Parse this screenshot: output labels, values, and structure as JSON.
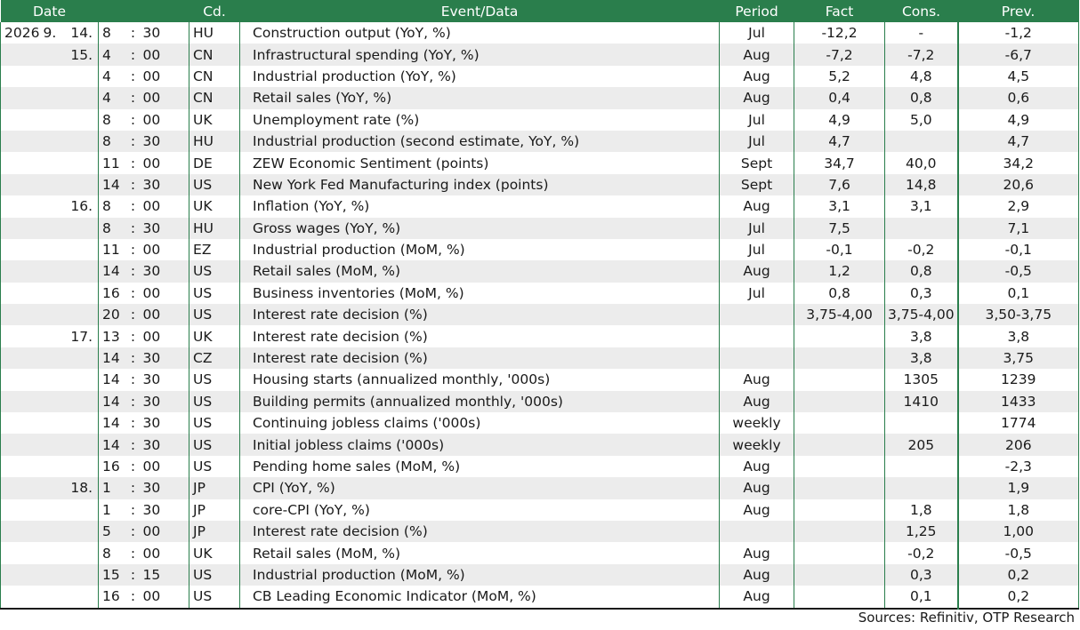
{
  "headers": {
    "date": "Date",
    "code": "Cd.",
    "event": "Event/Data",
    "period": "Period",
    "fact": "Fact",
    "cons": "Cons.",
    "prev": "Prev."
  },
  "rows": [
    {
      "year": "2026",
      "month": "9.",
      "day": "14.",
      "hour": "8",
      "min": "30",
      "code": "HU",
      "event": "Construction output (YoY, %)",
      "period": "Jul",
      "fact": "-12,2",
      "cons": "-",
      "prev": "-1,2"
    },
    {
      "year": "",
      "month": "",
      "day": "15.",
      "hour": "4",
      "min": "00",
      "code": "CN",
      "event": "Infrastructural spending (YoY, %)",
      "period": "Aug",
      "fact": "-7,2",
      "cons": "-7,2",
      "prev": "-6,7"
    },
    {
      "year": "",
      "month": "",
      "day": "",
      "hour": "4",
      "min": "00",
      "code": "CN",
      "event": "Industrial production (YoY, %)",
      "period": "Aug",
      "fact": "5,2",
      "cons": "4,8",
      "prev": "4,5"
    },
    {
      "year": "",
      "month": "",
      "day": "",
      "hour": "4",
      "min": "00",
      "code": "CN",
      "event": "Retail sales (YoY, %)",
      "period": "Aug",
      "fact": "0,4",
      "cons": "0,8",
      "prev": "0,6"
    },
    {
      "year": "",
      "month": "",
      "day": "",
      "hour": "8",
      "min": "00",
      "code": "UK",
      "event": "Unemployment rate (%)",
      "period": "Jul",
      "fact": "4,9",
      "cons": "5,0",
      "prev": "4,9"
    },
    {
      "year": "",
      "month": "",
      "day": "",
      "hour": "8",
      "min": "30",
      "code": "HU",
      "event": "Industrial production (second estimate, YoY, %)",
      "period": "Jul",
      "fact": "4,7",
      "cons": "",
      "prev": "4,7"
    },
    {
      "year": "",
      "month": "",
      "day": "",
      "hour": "11",
      "min": "00",
      "code": "DE",
      "event": "ZEW Economic Sentiment (points)",
      "period": "Sept",
      "fact": "34,7",
      "cons": "40,0",
      "prev": "34,2"
    },
    {
      "year": "",
      "month": "",
      "day": "",
      "hour": "14",
      "min": "30",
      "code": "US",
      "event": "New York Fed Manufacturing index (points)",
      "period": "Sept",
      "fact": "7,6",
      "cons": "14,8",
      "prev": "20,6"
    },
    {
      "year": "",
      "month": "",
      "day": "16.",
      "hour": "8",
      "min": "00",
      "code": "UK",
      "event": "Inflation (YoY, %)",
      "period": "Aug",
      "fact": "3,1",
      "cons": "3,1",
      "prev": "2,9"
    },
    {
      "year": "",
      "month": "",
      "day": "",
      "hour": "8",
      "min": "30",
      "code": "HU",
      "event": "Gross wages (YoY, %)",
      "period": "Jul",
      "fact": "7,5",
      "cons": "",
      "prev": "7,1"
    },
    {
      "year": "",
      "month": "",
      "day": "",
      "hour": "11",
      "min": "00",
      "code": "EZ",
      "event": "Industrial production (MoM, %)",
      "period": "Jul",
      "fact": "-0,1",
      "cons": "-0,2",
      "prev": "-0,1"
    },
    {
      "year": "",
      "month": "",
      "day": "",
      "hour": "14",
      "min": "30",
      "code": "US",
      "event": "Retail sales (MoM, %)",
      "period": "Aug",
      "fact": "1,2",
      "cons": "0,8",
      "prev": "-0,5"
    },
    {
      "year": "",
      "month": "",
      "day": "",
      "hour": "16",
      "min": "00",
      "code": "US",
      "event": "Business inventories (MoM, %)",
      "period": "Jul",
      "fact": "0,8",
      "cons": "0,3",
      "prev": "0,1"
    },
    {
      "year": "",
      "month": "",
      "day": "",
      "hour": "20",
      "min": "00",
      "code": "US",
      "event": "Interest rate decision (%)",
      "period": "",
      "fact": "3,75-4,00",
      "cons": "3,75-4,00",
      "prev": "3,50-3,75"
    },
    {
      "year": "",
      "month": "",
      "day": "17.",
      "hour": "13",
      "min": "00",
      "code": "UK",
      "event": "Interest rate decision (%)",
      "period": "",
      "fact": "",
      "cons": "3,8",
      "prev": "3,8"
    },
    {
      "year": "",
      "month": "",
      "day": "",
      "hour": "14",
      "min": "30",
      "code": "CZ",
      "event": "Interest rate decision (%)",
      "period": "",
      "fact": "",
      "cons": "3,8",
      "prev": "3,75"
    },
    {
      "year": "",
      "month": "",
      "day": "",
      "hour": "14",
      "min": "30",
      "code": "US",
      "event": "Housing starts (annualized monthly, '000s)",
      "period": "Aug",
      "fact": "",
      "cons": "1305",
      "prev": "1239"
    },
    {
      "year": "",
      "month": "",
      "day": "",
      "hour": "14",
      "min": "30",
      "code": "US",
      "event": "Building permits (annualized monthly, '000s)",
      "period": "Aug",
      "fact": "",
      "cons": "1410",
      "prev": "1433"
    },
    {
      "year": "",
      "month": "",
      "day": "",
      "hour": "14",
      "min": "30",
      "code": "US",
      "event": "Continuing jobless claims ('000s)",
      "period": "weekly",
      "fact": "",
      "cons": "",
      "prev": "1774"
    },
    {
      "year": "",
      "month": "",
      "day": "",
      "hour": "14",
      "min": "30",
      "code": "US",
      "event": "Initial jobless claims ('000s)",
      "period": "weekly",
      "fact": "",
      "cons": "205",
      "prev": "206"
    },
    {
      "year": "",
      "month": "",
      "day": "",
      "hour": "16",
      "min": "00",
      "code": "US",
      "event": "Pending home sales (MoM, %)",
      "period": "Aug",
      "fact": "",
      "cons": "",
      "prev": "-2,3"
    },
    {
      "year": "",
      "month": "",
      "day": "18.",
      "hour": "1",
      "min": "30",
      "code": "JP",
      "event": "CPI (YoY, %)",
      "period": "Aug",
      "fact": "",
      "cons": "",
      "prev": "1,9"
    },
    {
      "year": "",
      "month": "",
      "day": "",
      "hour": "1",
      "min": "30",
      "code": "JP",
      "event": "core-CPI (YoY, %)",
      "period": "Aug",
      "fact": "",
      "cons": "1,8",
      "prev": "1,8"
    },
    {
      "year": "",
      "month": "",
      "day": "",
      "hour": "5",
      "min": "00",
      "code": "JP",
      "event": "Interest rate decision (%)",
      "period": "",
      "fact": "",
      "cons": "1,25",
      "prev": "1,00"
    },
    {
      "year": "",
      "month": "",
      "day": "",
      "hour": "8",
      "min": "00",
      "code": "UK",
      "event": "Retail sales (MoM, %)",
      "period": "Aug",
      "fact": "",
      "cons": "-0,2",
      "prev": "-0,5"
    },
    {
      "year": "",
      "month": "",
      "day": "",
      "hour": "15",
      "min": "15",
      "code": "US",
      "event": "Industrial production (MoM, %)",
      "period": "Aug",
      "fact": "",
      "cons": "0,3",
      "prev": "0,2"
    },
    {
      "year": "",
      "month": "",
      "day": "",
      "hour": "16",
      "min": "00",
      "code": "US",
      "event": "CB Leading Economic Indicator (MoM, %)",
      "period": "Aug",
      "fact": "",
      "cons": "0,1",
      "prev": "0,2"
    }
  ],
  "time_separator": ":",
  "source_note": "Sources: Refinitiv, OTP Research",
  "colors": {
    "header_bg": "#2a7e4c",
    "header_text": "#ffffff",
    "stripe": "#ececec",
    "rule": "#2a7e4c"
  }
}
